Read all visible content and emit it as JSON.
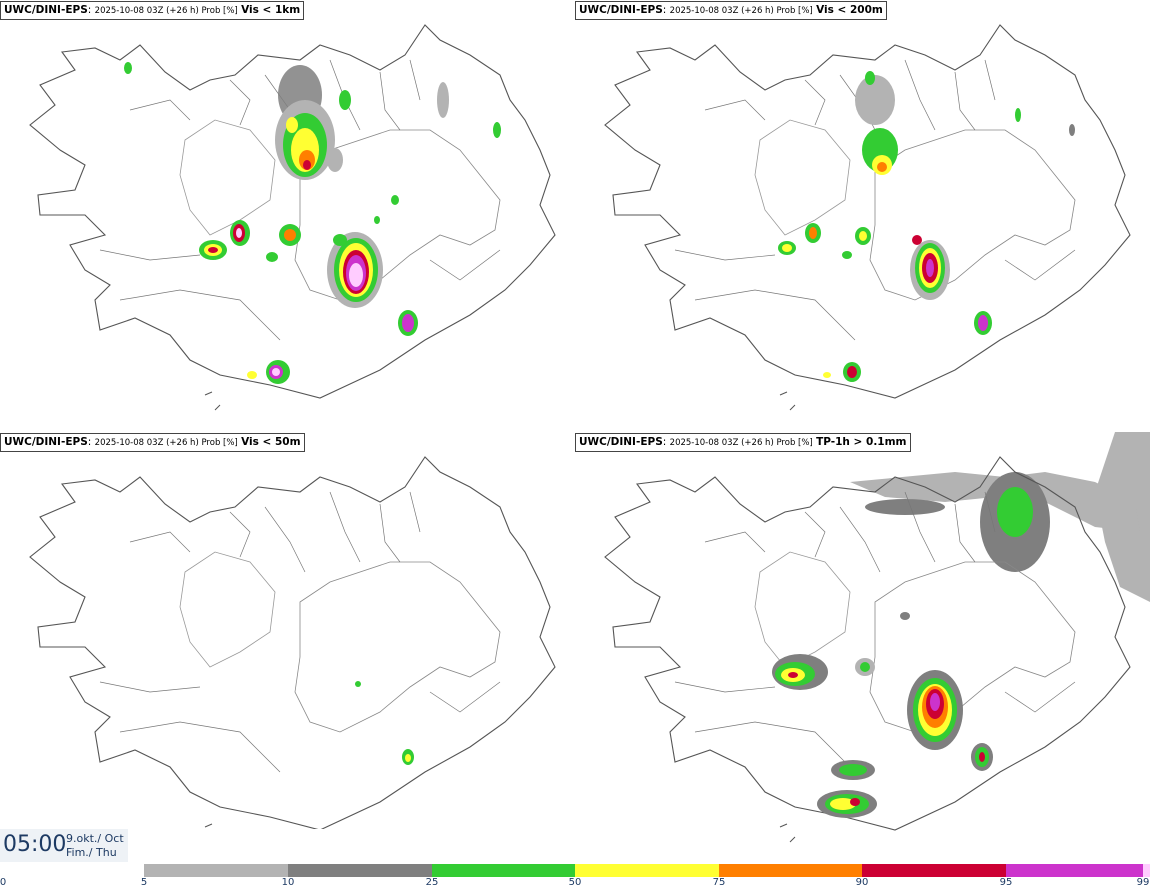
{
  "panels": [
    {
      "source": "UWC/DINI-EPS",
      "run": "2025-10-08 03Z (+26 h) Prob [%]",
      "variable": "Vis < 1km"
    },
    {
      "source": "UWC/DINI-EPS",
      "run": "2025-10-08 03Z (+26 h) Prob [%]",
      "variable": "Vis < 200m"
    },
    {
      "source": "UWC/DINI-EPS",
      "run": "2025-10-08 03Z (+26 h) Prob [%]",
      "variable": "Vis < 50m"
    },
    {
      "source": "UWC/DINI-EPS",
      "run": "2025-10-08 03Z (+26 h) Prob [%]",
      "variable": "TP-1h > 0.1mm"
    }
  ],
  "valid_time": {
    "time": "05:00",
    "date": "9.okt./ Oct",
    "weekday": "Fim./ Thu"
  },
  "colorbar": {
    "ticks": [
      "0",
      "5",
      "10",
      "25",
      "50",
      "75",
      "90",
      "95",
      "99"
    ],
    "colors": [
      "#b3b3b3",
      "#7f7f7f",
      "#33cc33",
      "#ffff33",
      "#ff7f00",
      "#cc0033",
      "#cc33cc",
      "#ffccff"
    ]
  }
}
